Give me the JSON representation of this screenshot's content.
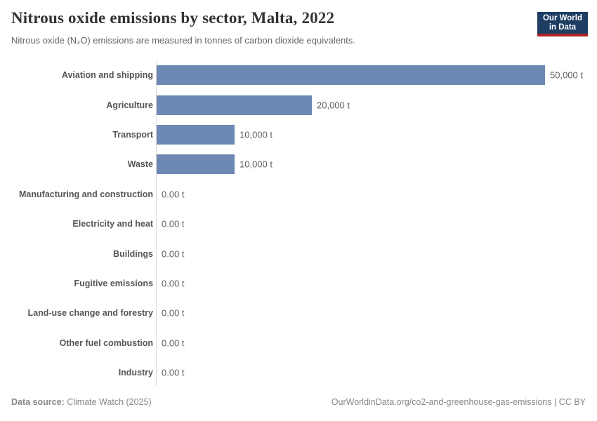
{
  "header": {
    "title": "Nitrous oxide emissions by sector, Malta, 2022",
    "subtitle": "Nitrous oxide (N₂O) emissions are measured in tonnes of carbon dioxide equivalents.",
    "logo": {
      "line1": "Our World",
      "line2": "in Data"
    }
  },
  "chart_data": {
    "type": "bar",
    "orientation": "horizontal",
    "title": "Nitrous oxide emissions by sector, Malta, 2022",
    "unit": "tonnes of carbon dioxide equivalents",
    "categories": [
      "Aviation and shipping",
      "Agriculture",
      "Transport",
      "Waste",
      "Manufacturing and construction",
      "Electricity and heat",
      "Buildings",
      "Fugitive emissions",
      "Land-use change and forestry",
      "Other fuel combustion",
      "Industry"
    ],
    "values": [
      50000,
      20000,
      10000,
      10000,
      0,
      0,
      0,
      0,
      0,
      0,
      0
    ],
    "value_labels": [
      "50,000 t",
      "20,000 t",
      "10,000 t",
      "10,000 t",
      "0.00 t",
      "0.00 t",
      "0.00 t",
      "0.00 t",
      "0.00 t",
      "0.00 t",
      "0.00 t"
    ],
    "xlim": [
      0,
      50000
    ],
    "grid": false,
    "legend": "none"
  },
  "colors": {
    "bar": "#6d88b2",
    "logo_bg": "#1d3d63",
    "logo_accent": "#b22222",
    "axis_line": "#dadada"
  },
  "footer": {
    "datasource_label": "Data source:",
    "datasource_value": "Climate Watch (2025)",
    "credit": "OurWorldinData.org/co2-and-greenhouse-gas-emissions | CC BY"
  }
}
